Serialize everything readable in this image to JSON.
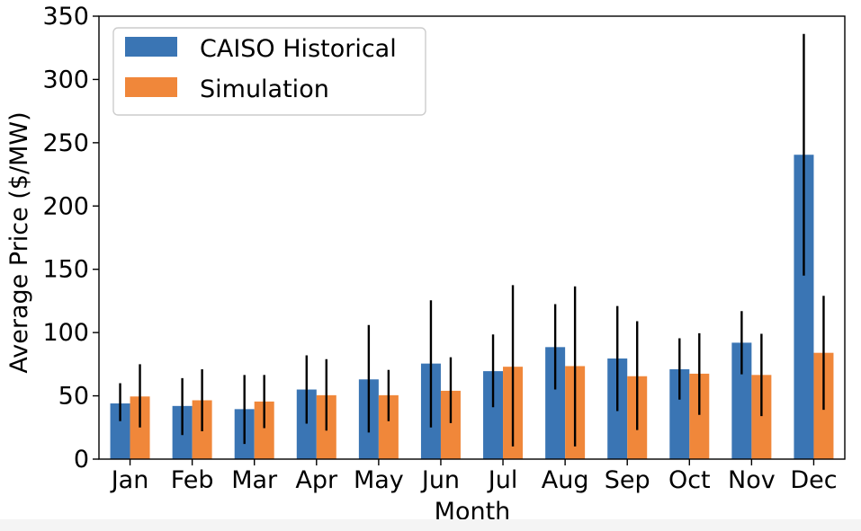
{
  "chart_data": {
    "type": "bar",
    "title": "",
    "xlabel": "Month",
    "ylabel": "Average Price ($/MW)",
    "ylim": [
      0,
      350
    ],
    "yticks": [
      0,
      50,
      100,
      150,
      200,
      250,
      300,
      350
    ],
    "grid": false,
    "legend_position": "top-left",
    "categories": [
      "Jan",
      "Feb",
      "Mar",
      "Apr",
      "May",
      "Jun",
      "Jul",
      "Aug",
      "Sep",
      "Oct",
      "Nov",
      "Dec"
    ],
    "series": [
      {
        "name": "CAISO Historical",
        "color": "#3a75b4",
        "values": [
          44,
          42,
          39.5,
          55,
          63,
          75.5,
          69.5,
          88.5,
          79.5,
          71,
          92,
          240.5
        ],
        "error_low": [
          30,
          19,
          12,
          28,
          21,
          25,
          41,
          55,
          38,
          47,
          67,
          145
        ],
        "error_high": [
          60,
          64,
          66.5,
          82,
          106,
          125.5,
          98.5,
          122.5,
          121,
          95.5,
          117,
          336
        ]
      },
      {
        "name": "Simulation",
        "color": "#f0873a",
        "values": [
          49.5,
          46.5,
          45.5,
          50.5,
          50.5,
          54,
          73,
          73.5,
          65.5,
          67.5,
          66.5,
          84
        ],
        "error_low": [
          25,
          22,
          24.5,
          22.5,
          30,
          28.5,
          10,
          10,
          23,
          35,
          34,
          39
        ],
        "error_high": [
          75,
          71,
          66.5,
          79,
          70.5,
          80.5,
          137.5,
          136.5,
          109,
          99.5,
          99,
          129
        ]
      }
    ]
  }
}
